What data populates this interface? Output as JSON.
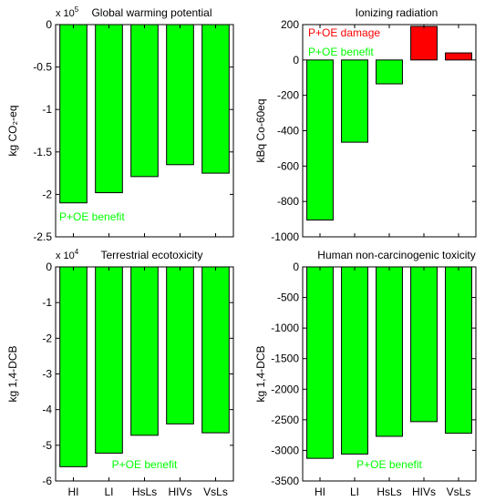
{
  "chart_data": [
    {
      "type": "bar",
      "title": "Global warming potential",
      "ylabel": "kg CO₂-eq",
      "exponent_label": "x 10",
      "exponent_power": "5",
      "categories": [
        "HI",
        "LI",
        "HsLs",
        "HIVs",
        "VsLs"
      ],
      "show_xticklabels": false,
      "values": [
        -210000,
        -198000,
        -179000,
        -165000,
        -175000
      ],
      "bar_colors": [
        "#00ff00",
        "#00ff00",
        "#00ff00",
        "#00ff00",
        "#00ff00"
      ],
      "ylim": [
        -250000,
        0
      ],
      "yticks": [
        0,
        -50000,
        -100000,
        -150000,
        -200000,
        -250000
      ],
      "ytick_labels": [
        "0",
        "-0.5",
        "-1",
        "-1.5",
        "-2",
        "-2.5"
      ],
      "annotations": [
        {
          "text": "P+OE benefit",
          "color": "#00ff00",
          "placement": "bottom-left"
        }
      ],
      "grid": false
    },
    {
      "type": "bar",
      "title": "Ionizing radiation",
      "ylabel": "kBq Co-60eq",
      "categories": [
        "HI",
        "LI",
        "HsLs",
        "HIVs",
        "VsLs"
      ],
      "show_xticklabels": false,
      "values": [
        -905,
        -465,
        -135,
        190,
        40
      ],
      "bar_colors": [
        "#00ff00",
        "#00ff00",
        "#00ff00",
        "#ff0000",
        "#ff0000"
      ],
      "ylim": [
        -1000,
        200
      ],
      "yticks": [
        200,
        0,
        -200,
        -400,
        -600,
        -800,
        -1000
      ],
      "ytick_labels": [
        "200",
        "0",
        "-200",
        "-400",
        "-600",
        "-800",
        "-1000"
      ],
      "annotations": [
        {
          "text": "P+OE damage",
          "color": "#ff0000",
          "placement": "top-left"
        },
        {
          "text": "P+OE benefit",
          "color": "#00ff00",
          "placement": "top-left-second"
        }
      ],
      "grid": false
    },
    {
      "type": "bar",
      "title": "Terrestrial ecotoxicity",
      "ylabel": "kg 1,4-DCB",
      "exponent_label": "x 10",
      "exponent_power": "4",
      "categories": [
        "HI",
        "LI",
        "HsLs",
        "HIVs",
        "VsLs"
      ],
      "show_xticklabels": true,
      "values": [
        -56000,
        -52200,
        -47200,
        -44000,
        -46500
      ],
      "bar_colors": [
        "#00ff00",
        "#00ff00",
        "#00ff00",
        "#00ff00",
        "#00ff00"
      ],
      "ylim": [
        -60000,
        0
      ],
      "yticks": [
        0,
        -10000,
        -20000,
        -30000,
        -40000,
        -50000,
        -60000
      ],
      "ytick_labels": [
        "0",
        "-1",
        "-2",
        "-3",
        "-4",
        "-5",
        "-6"
      ],
      "annotations": [
        {
          "text": "P+OE benefit",
          "color": "#00ff00",
          "placement": "bottom-center"
        }
      ],
      "grid": false
    },
    {
      "type": "bar",
      "title": "Human non-carcinogenic toxicity",
      "ylabel": "kg 1,4-DCB",
      "categories": [
        "HI",
        "LI",
        "HsLs",
        "HIVs",
        "VsLs"
      ],
      "show_xticklabels": true,
      "values": [
        -3130,
        -3060,
        -2770,
        -2530,
        -2720
      ],
      "bar_colors": [
        "#00ff00",
        "#00ff00",
        "#00ff00",
        "#00ff00",
        "#00ff00"
      ],
      "ylim": [
        -3500,
        0
      ],
      "yticks": [
        0,
        -500,
        -1000,
        -1500,
        -2000,
        -2500,
        -3000,
        -3500
      ],
      "ytick_labels": [
        "0",
        "-500",
        "-1000",
        "-1500",
        "-2000",
        "-2500",
        "-3000",
        "-3500"
      ],
      "annotations": [
        {
          "text": "P+OE benefit",
          "color": "#00ff00",
          "placement": "bottom-center"
        }
      ],
      "grid": false
    }
  ]
}
